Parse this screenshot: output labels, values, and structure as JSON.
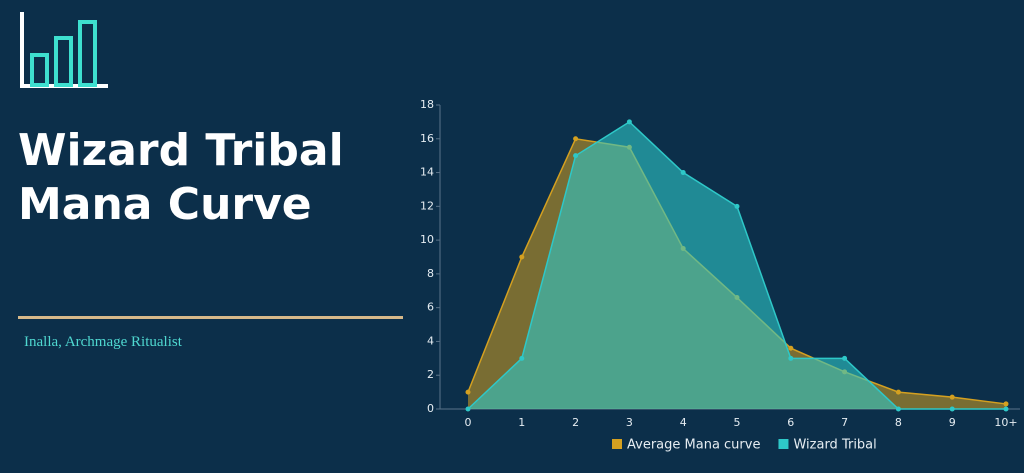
{
  "header": {
    "title": "Wizard Tribal Mana Curve",
    "subtitle": "Inalla, Archmage Ritualist"
  },
  "chart_data": {
    "type": "area",
    "categories": [
      "0",
      "1",
      "2",
      "3",
      "4",
      "5",
      "6",
      "7",
      "8",
      "9",
      "10+"
    ],
    "series": [
      {
        "name": "Average Mana curve",
        "color": "#d4a020",
        "values": [
          1,
          9,
          16,
          15.5,
          9.5,
          6.6,
          3.6,
          2.2,
          1,
          0.7,
          0.3
        ]
      },
      {
        "name": "Wizard Tribal",
        "color": "#2ec8c8",
        "values": [
          0,
          3,
          15,
          17,
          14,
          12,
          3,
          3,
          0,
          0,
          0
        ]
      }
    ],
    "ylim": [
      0,
      18
    ],
    "yticks": [
      0,
      2,
      4,
      6,
      8,
      10,
      12,
      14,
      16,
      18
    ],
    "legend": "bottom"
  }
}
